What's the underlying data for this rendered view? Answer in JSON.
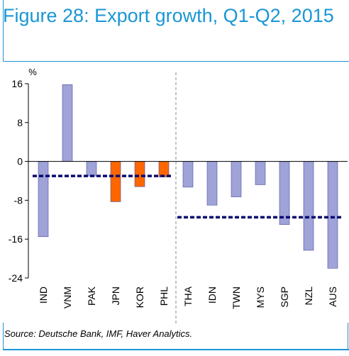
{
  "figure": {
    "title": "Figure 28: Export growth, Q1-Q2, 2015",
    "source": "Source: Deutsche Bank, IMF, Haver Analytics."
  },
  "chart_data": {
    "type": "bar",
    "unit_label": "%",
    "ylim": [
      -24,
      16
    ],
    "yticks": [
      16,
      8,
      0,
      -8,
      -16,
      -24
    ],
    "categories": [
      "IND",
      "VNM",
      "PAK",
      "JPN",
      "KOR",
      "PHL",
      "THA",
      "IDN",
      "TWN",
      "MYS",
      "SGP",
      "NZL",
      "AUS"
    ],
    "values": [
      -15.5,
      15.8,
      -3.0,
      -8.3,
      -5.2,
      -3.2,
      -5.3,
      -9.0,
      -7.3,
      -4.8,
      -13.0,
      -18.3,
      -22.0
    ],
    "bar_colors": [
      "#9fa3d8",
      "#9fa3d8",
      "#9fa3d8",
      "#ff6600",
      "#ff6600",
      "#ff6600",
      "#9fa3d8",
      "#9fa3d8",
      "#9fa3d8",
      "#9fa3d8",
      "#9fa3d8",
      "#9fa3d8",
      "#9fa3d8"
    ],
    "averages": [
      {
        "from": "IND",
        "to": "PHL",
        "value": -3.0
      },
      {
        "from": "THA",
        "to": "AUS",
        "value": -11.5
      }
    ],
    "separator_after": "PHL",
    "average_color": "#0a0a6e"
  }
}
